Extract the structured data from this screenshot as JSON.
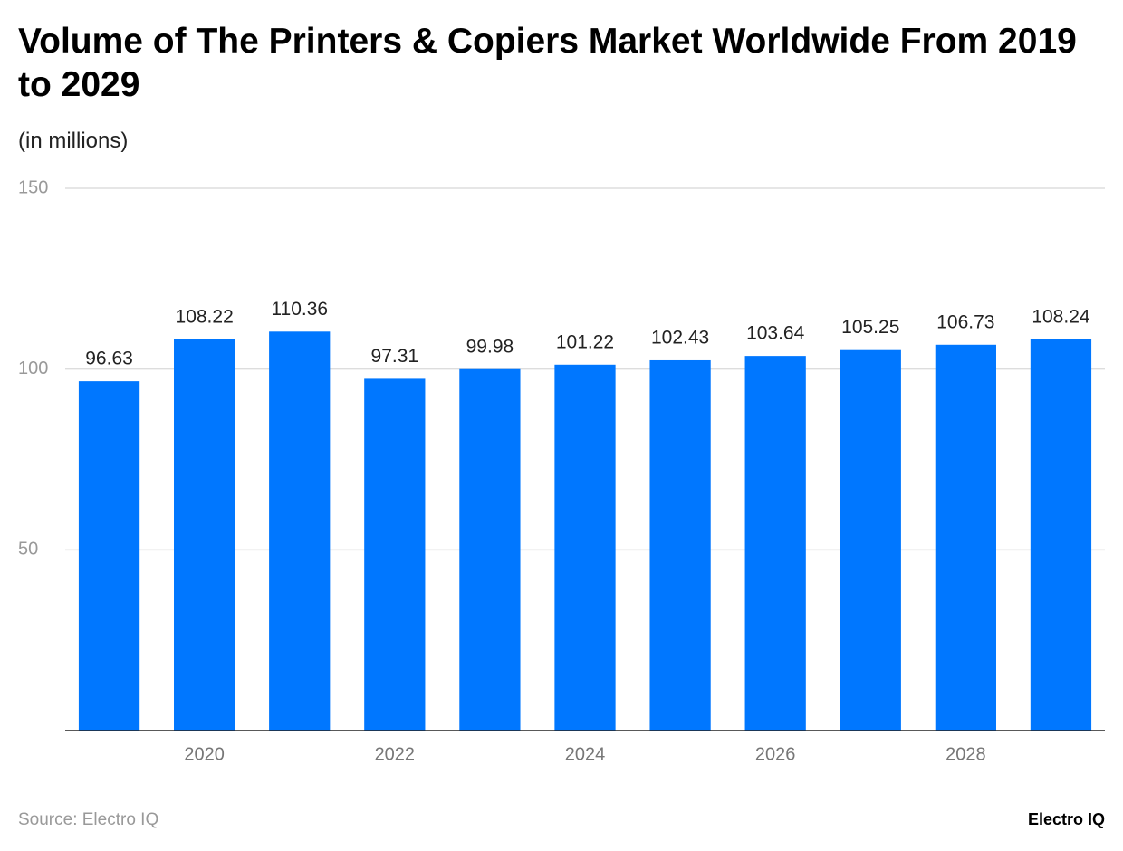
{
  "chart_data": {
    "type": "bar",
    "title": "Volume of The Printers & Copiers Market Worldwide From 2019 to 2029",
    "subtitle": "(in millions)",
    "categories": [
      null,
      "2020",
      null,
      "2022",
      null,
      "2024",
      null,
      "2026",
      null,
      "2028",
      null
    ],
    "values": [
      96.63,
      108.22,
      110.36,
      97.31,
      99.98,
      101.22,
      102.43,
      103.64,
      105.25,
      106.73,
      108.24
    ],
    "color": "#0077ff",
    "ylim": [
      0,
      150
    ],
    "yticks": [
      50,
      100,
      150
    ],
    "grid": true,
    "source": "Source: Electro IQ",
    "brand": "Electro IQ"
  }
}
